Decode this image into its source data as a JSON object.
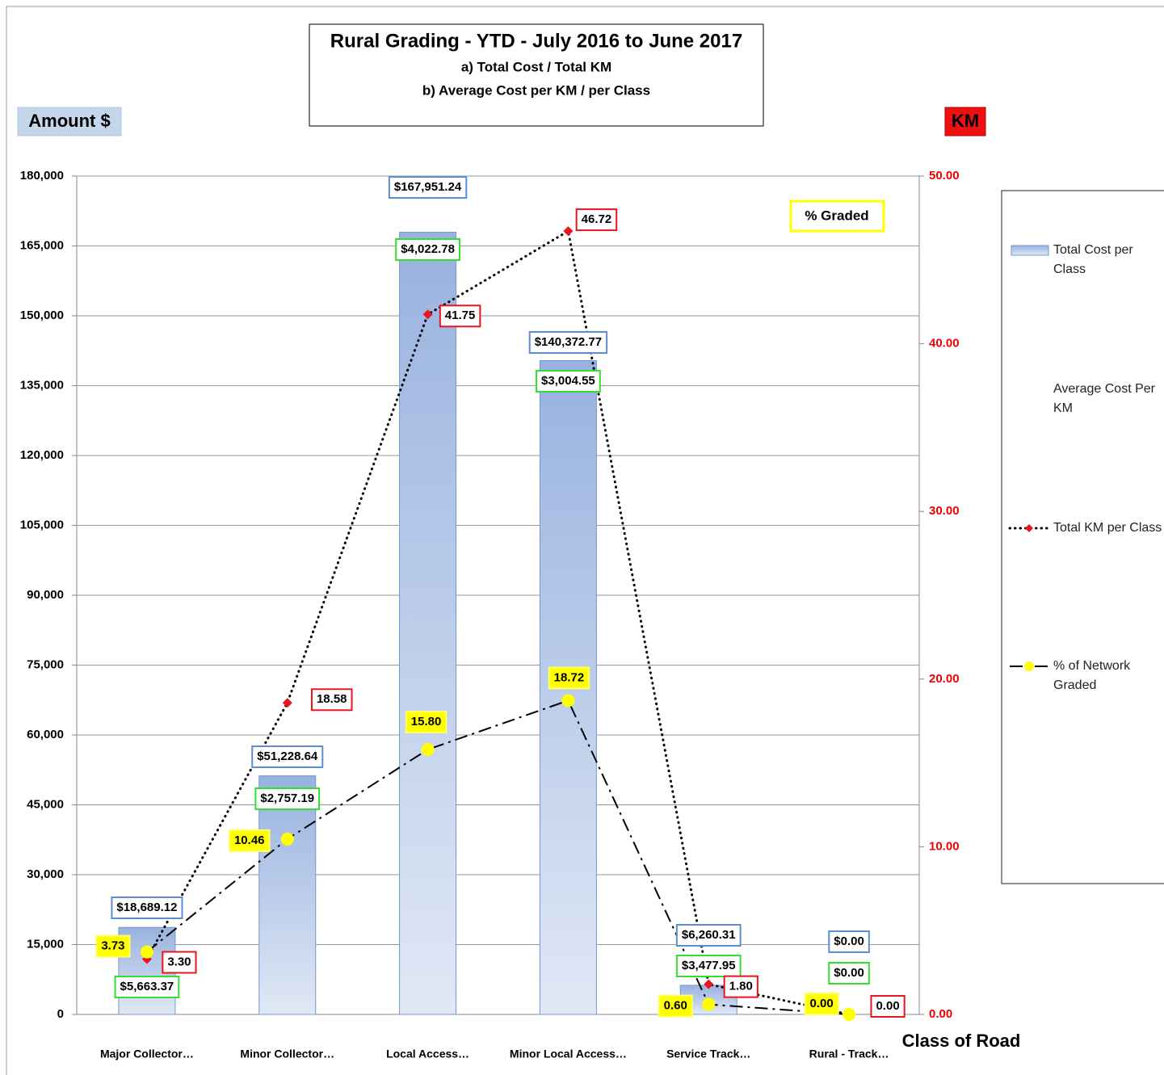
{
  "chart_data": {
    "type": "bar",
    "title": "Rural Grading  - YTD - July 2016 to June 2017",
    "subtitle": [
      "a) Total Cost / Total KM",
      "b) Average Cost per KM / per Class"
    ],
    "y_label": "Amount $",
    "y2_label": "KM",
    "x_label": "Class of Road",
    "annotation": "% Graded",
    "categories": [
      "Major Collector…",
      "Minor Collector…",
      "Local Access…",
      "Minor Local Access…",
      "Service Track…",
      "Rural - Track…"
    ],
    "ylim": [
      0,
      180000
    ],
    "yticks": [
      0,
      {
        "value": 15000,
        "label": "15,000"
      },
      {
        "value": 30000,
        "label": "30,000"
      },
      {
        "value": 45000,
        "label": "45,000"
      },
      {
        "value": 60000,
        "label": "60,000"
      },
      {
        "value": 75000,
        "label": "75,000"
      },
      {
        "value": 90000,
        "label": "90,000"
      },
      {
        "value": 105000,
        "label": "105,000"
      },
      {
        "value": 120000,
        "label": "120,000"
      },
      {
        "value": 135000,
        "label": "135,000"
      },
      {
        "value": 150000,
        "label": "150,000"
      },
      {
        "value": 165000,
        "label": "165,000"
      },
      {
        "value": 180000,
        "label": "180,000"
      }
    ],
    "y2lim": [
      0,
      50
    ],
    "y2ticks": [
      {
        "value": 0,
        "label": "0.00"
      },
      {
        "value": 10,
        "label": "10.00"
      },
      {
        "value": 20,
        "label": "20.00"
      },
      {
        "value": 30,
        "label": "30.00"
      },
      {
        "value": 40,
        "label": "40.00"
      },
      {
        "value": 50,
        "label": "50.00"
      }
    ],
    "grid": true,
    "legend": "right",
    "series": [
      {
        "name": "Total Cost per Class",
        "type": "bar",
        "color": "#a8bee4",
        "values": [
          18689.12,
          51228.64,
          167951.24,
          140372.77,
          6260.31,
          0
        ],
        "value_labels": [
          "$18,689.12",
          "$51,228.64",
          "$167,951.24",
          "$140,372.77",
          "$6,260.31",
          "$0.00"
        ]
      },
      {
        "name": "Average Cost Per KM",
        "type": "label",
        "color": "#33dd33",
        "values": [
          5663.37,
          2757.19,
          4022.78,
          3004.55,
          3477.95,
          0
        ],
        "value_labels": [
          "$5,663.37",
          "$2,757.19",
          "$4,022.78",
          "$3,004.55",
          "$3,477.95",
          "$0.00"
        ]
      },
      {
        "name": "Total KM per Class",
        "type": "line",
        "axis": "y2",
        "color": "#e8141e",
        "values": [
          3.3,
          18.58,
          41.75,
          46.72,
          1.8,
          0.0
        ],
        "value_labels": [
          "3.30",
          "18.58",
          "41.75",
          "46.72",
          "1.80",
          "0.00"
        ]
      },
      {
        "name": "% of  Network Graded",
        "type": "line",
        "axis": "y2",
        "color": "#ffff00",
        "values": [
          3.73,
          10.46,
          15.8,
          18.72,
          0.6,
          0.0
        ],
        "value_labels": [
          "3.73",
          "10.46",
          "15.80",
          "18.72",
          "0.60",
          "0.00"
        ]
      }
    ]
  }
}
